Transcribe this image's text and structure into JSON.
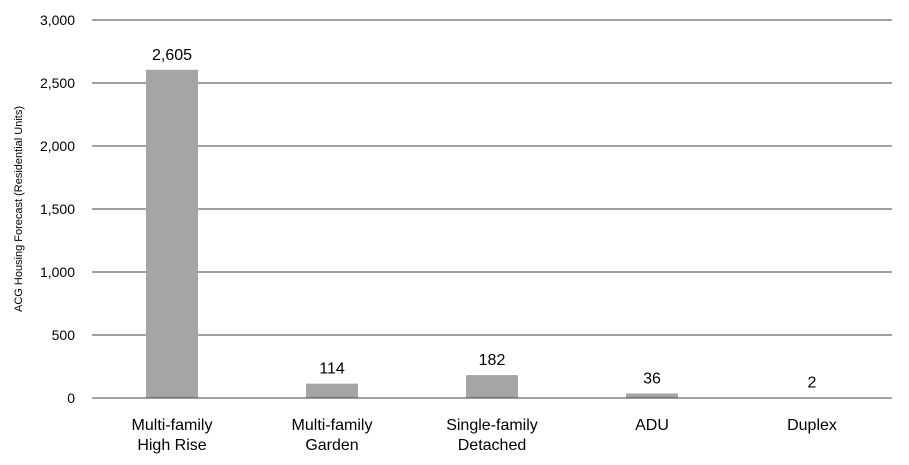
{
  "chart_data": {
    "type": "bar",
    "title": "",
    "xlabel": "",
    "ylabel": "ACG Housing Forecast (Residential Units)",
    "categories": [
      [
        "Multi-family",
        "High Rise"
      ],
      [
        "Multi-family",
        "Garden"
      ],
      [
        "Single-family",
        "Detached"
      ],
      [
        "ADU"
      ],
      [
        "Duplex"
      ]
    ],
    "values": [
      2605,
      114,
      182,
      36,
      2
    ],
    "data_labels": [
      "2,605",
      "114",
      "182",
      "36",
      "2"
    ],
    "ylim": [
      0,
      3000
    ],
    "yticks": [
      0,
      500,
      1000,
      1500,
      2000,
      2500,
      3000
    ],
    "ytick_labels": [
      "0",
      "500",
      "1,000",
      "1,500",
      "2,000",
      "2,500",
      "3,000"
    ],
    "grid": true,
    "legend": "none",
    "bar_color": "#a5a5a5",
    "grid_color": "#404040"
  }
}
